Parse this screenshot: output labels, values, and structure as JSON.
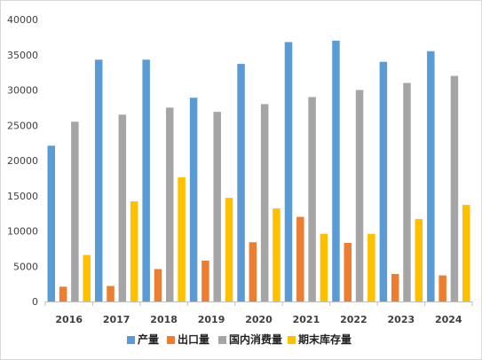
{
  "chart_data": {
    "type": "bar",
    "categories": [
      "2016",
      "2017",
      "2018",
      "2019",
      "2020",
      "2021",
      "2022",
      "2023",
      "2024"
    ],
    "series": [
      {
        "name": "产量",
        "color": "#5b9bd5",
        "values": [
          22100,
          34300,
          34300,
          28900,
          33700,
          36800,
          37000,
          34000,
          35500
        ]
      },
      {
        "name": "出口量",
        "color": "#ed7d31",
        "values": [
          2100,
          2200,
          4600,
          5800,
          8400,
          12000,
          8300,
          3900,
          3700
        ]
      },
      {
        "name": "国内消费量",
        "color": "#a5a5a5",
        "values": [
          25500,
          26500,
          27500,
          26900,
          28000,
          29000,
          30000,
          31000,
          32000
        ]
      },
      {
        "name": "期末库存量",
        "color": "#ffc000",
        "values": [
          6600,
          14200,
          17600,
          14700,
          13200,
          9600,
          9600,
          11700,
          13700
        ]
      }
    ],
    "yticks": [
      "0",
      "5000",
      "10000",
      "15000",
      "20000",
      "25000",
      "30000",
      "35000",
      "40000"
    ],
    "ylim": [
      0,
      40000
    ],
    "title": "",
    "xlabel": "",
    "ylabel": "",
    "legend_position": "bottom",
    "grid": false
  }
}
